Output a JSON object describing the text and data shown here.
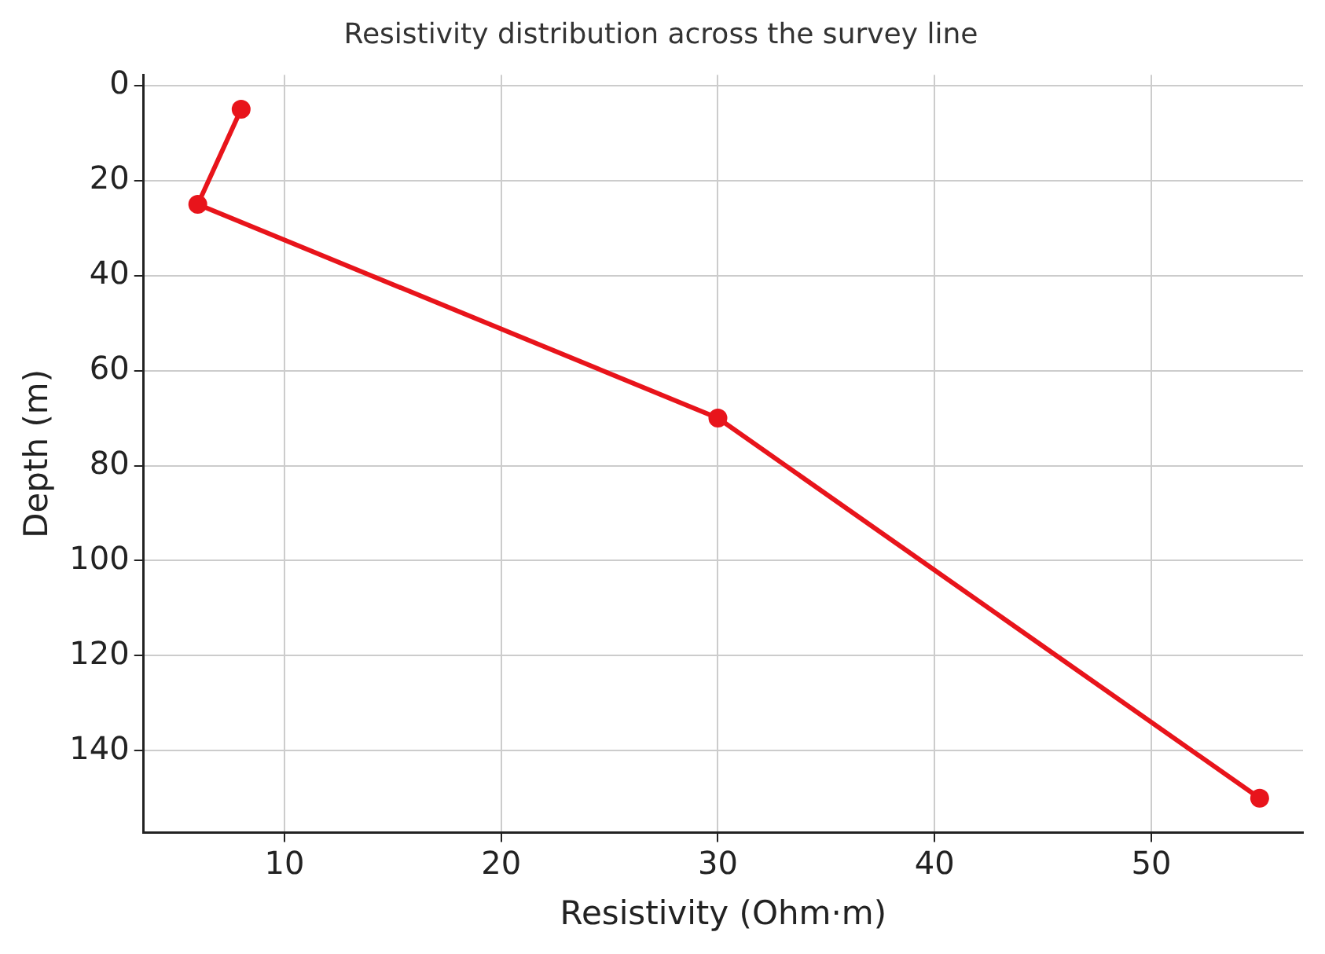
{
  "chart_data": {
    "type": "line",
    "title": "Resistivity distribution across the survey line",
    "xlabel": "Resistivity (Ohm·m)",
    "ylabel": "Depth (m)",
    "x": [
      8,
      6,
      30,
      55
    ],
    "series": [
      {
        "color": "#e8141b",
        "values": [
          5,
          25,
          70,
          150
        ]
      }
    ],
    "xlim": [
      3.5,
      57
    ],
    "xticks": [
      10,
      20,
      30,
      40,
      50
    ],
    "ylim": [
      157.25,
      -2.25
    ],
    "yticks": [
      0,
      20,
      40,
      60,
      80,
      100,
      120,
      140
    ],
    "grid": true,
    "legend": false,
    "marker": "circle",
    "line_style": "solid"
  }
}
